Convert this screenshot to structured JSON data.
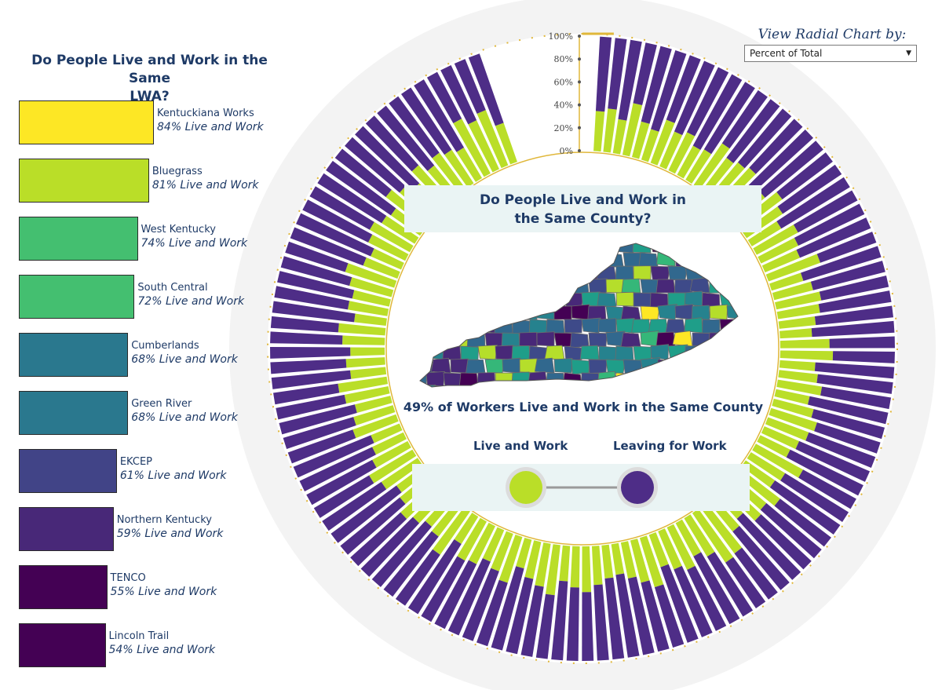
{
  "left_panel": {
    "title_line1": "Do People Live and Work in the Same",
    "title_line2": "LWA?"
  },
  "chart_data": [
    {
      "type": "bar",
      "orientation": "horizontal",
      "title": "Do People Live and Work in the Same LWA?",
      "categories": [
        "Kentuckiana Works",
        "Bluegrass",
        "West Kentucky",
        "South Central",
        "Cumberlands",
        "Green River",
        "EKCEP",
        "Northern Kentucky",
        "TENCO",
        "Lincoln Trail"
      ],
      "values": [
        84,
        81,
        74,
        72,
        68,
        68,
        61,
        59,
        55,
        54
      ],
      "labels": [
        "84% Live and Work",
        "81% Live and Work",
        "74% Live and Work",
        "72% Live and Work",
        "68% Live and Work",
        "68% Live and Work",
        "61% Live and Work",
        "59% Live and Work",
        "55% Live and Work",
        "54% Live and Work"
      ],
      "colors": [
        "#fde725",
        "#bade28",
        "#44bf70",
        "#44bf70",
        "#2a788e",
        "#2a788e",
        "#414487",
        "#482878",
        "#440154",
        "#440154"
      ],
      "unit": "%"
    },
    {
      "type": "bar",
      "layout": "radial-stacked",
      "title": "Do People Live and Work in the Same County?",
      "series": [
        {
          "name": "Live and Work",
          "color": "#bade28"
        },
        {
          "name": "Leaving for Work",
          "color": "#4e2d87"
        }
      ],
      "radial_axis_ticks": [
        "0%",
        "20%",
        "40%",
        "60%",
        "80%",
        "100%"
      ],
      "ylim": [
        0,
        100
      ],
      "live_and_work_percent": [
        35,
        38,
        30,
        46,
        32,
        28,
        40,
        33,
        37,
        29,
        31,
        44,
        36,
        39,
        42,
        27,
        34,
        45,
        38,
        30,
        41,
        36,
        33,
        48,
        29,
        35,
        40,
        37,
        32,
        28,
        43,
        46,
        31,
        34,
        39,
        30,
        36,
        42,
        38,
        33,
        29,
        47,
        35,
        31,
        44,
        37,
        40,
        28,
        34,
        50,
        52,
        39,
        33,
        41,
        36,
        30,
        45,
        38,
        32,
        27,
        29,
        34,
        40,
        36,
        31,
        44,
        38,
        33,
        26,
        42,
        35,
        30,
        37,
        39,
        28,
        46,
        34,
        31,
        36,
        41,
        33,
        29,
        38,
        44,
        35,
        30,
        27,
        40,
        36,
        32,
        39,
        43,
        31,
        34,
        30,
        37,
        41,
        28,
        35,
        33,
        38,
        45,
        32,
        29,
        36,
        40,
        34,
        31,
        44,
        37,
        30,
        42,
        33,
        39,
        35,
        31,
        54,
        47,
        52,
        36
      ],
      "summary": "49% of Workers Live and Work in the Same County"
    }
  ],
  "control": {
    "label": "View Radial Chart by:",
    "selected": "Percent of Total"
  },
  "center": {
    "title_line1": "Do People Live and Work in",
    "title_line2": "the Same County?",
    "stat": "49% of Workers Live and Work in the Same County",
    "legend_live": "Live and Work",
    "legend_leave": "Leaving for Work"
  },
  "colors": {
    "live": "#bade28",
    "leave": "#4e2d87",
    "ring_bg": "#f3f3f3",
    "gold": "#e0b73a",
    "title": "#1e3a66"
  },
  "map": {
    "county_colors": [
      "#440154",
      "#482878",
      "#3e4a89",
      "#31688e",
      "#26828e",
      "#1f9e89",
      "#35b779",
      "#6ece58",
      "#b5de2b",
      "#fde725"
    ]
  }
}
